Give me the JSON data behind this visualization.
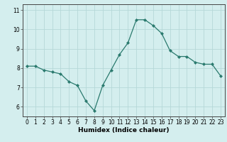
{
  "x": [
    0,
    1,
    2,
    3,
    4,
    5,
    6,
    7,
    8,
    9,
    10,
    11,
    12,
    13,
    14,
    15,
    16,
    17,
    18,
    19,
    20,
    21,
    22,
    23
  ],
  "y": [
    8.1,
    8.1,
    7.9,
    7.8,
    7.7,
    7.3,
    7.1,
    6.3,
    5.8,
    7.1,
    7.9,
    8.7,
    9.3,
    10.5,
    10.5,
    10.2,
    9.8,
    8.9,
    8.6,
    8.6,
    8.3,
    8.2,
    8.2,
    7.6
  ],
  "line_color": "#2a7a6e",
  "marker": "D",
  "marker_size": 2.0,
  "bg_color": "#d4eeee",
  "grid_color": "#b5d8d8",
  "axis_color": "#444444",
  "xlabel": "Humidex (Indice chaleur)",
  "xlabel_fontsize": 6.5,
  "ylim": [
    5.5,
    11.3
  ],
  "xlim": [
    -0.5,
    23.5
  ],
  "yticks": [
    6,
    7,
    8,
    9,
    10,
    11
  ],
  "xticks": [
    0,
    1,
    2,
    3,
    4,
    5,
    6,
    7,
    8,
    9,
    10,
    11,
    12,
    13,
    14,
    15,
    16,
    17,
    18,
    19,
    20,
    21,
    22,
    23
  ],
  "tick_fontsize": 5.5,
  "lw": 0.9
}
